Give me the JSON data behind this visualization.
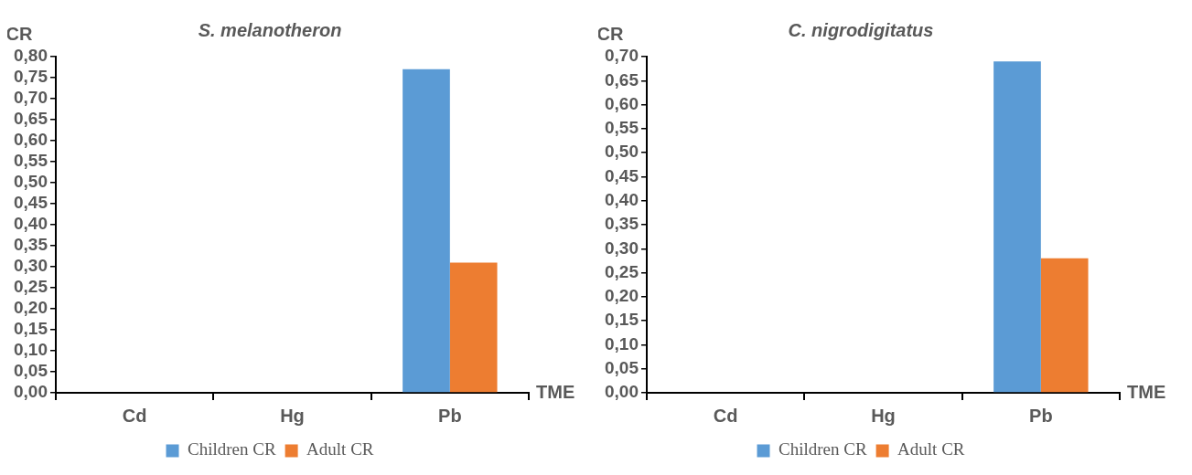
{
  "chart_data": [
    {
      "type": "bar",
      "title": "S. melanotheron",
      "ylabel": "CR",
      "xlabel": "TME",
      "categories": [
        "Cd",
        "Hg",
        "Pb"
      ],
      "series": [
        {
          "name": "Children CR",
          "color": "#5b9bd5",
          "values": [
            0,
            0,
            0.77
          ]
        },
        {
          "name": "Adult CR",
          "color": "#ed7d31",
          "values": [
            0,
            0,
            0.31
          ]
        }
      ],
      "ylim": [
        0,
        0.8
      ],
      "yticks": [
        {
          "value": 0,
          "label": "0,00"
        },
        {
          "value": 0.05,
          "label": "0,05"
        },
        {
          "value": 0.1,
          "label": "0,10"
        },
        {
          "value": 0.15,
          "label": "0,15"
        },
        {
          "value": 0.2,
          "label": "0,20"
        },
        {
          "value": 0.25,
          "label": "0,25"
        },
        {
          "value": 0.3,
          "label": "0,30"
        },
        {
          "value": 0.35,
          "label": "0,35"
        },
        {
          "value": 0.4,
          "label": "0,40"
        },
        {
          "value": 0.45,
          "label": "0,45"
        },
        {
          "value": 0.5,
          "label": "0,50"
        },
        {
          "value": 0.55,
          "label": "0,55"
        },
        {
          "value": 0.6,
          "label": "0,60"
        },
        {
          "value": 0.65,
          "label": "0,65"
        },
        {
          "value": 0.7,
          "label": "0,70"
        },
        {
          "value": 0.75,
          "label": "0,75"
        },
        {
          "value": 0.8,
          "label": "0,80"
        }
      ],
      "grid": false,
      "legend": "bottom"
    },
    {
      "type": "bar",
      "title": "C. nigrodigitatus",
      "ylabel": "CR",
      "xlabel": "TME",
      "categories": [
        "Cd",
        "Hg",
        "Pb"
      ],
      "series": [
        {
          "name": "Children CR",
          "color": "#5b9bd5",
          "values": [
            0,
            0,
            0.69
          ]
        },
        {
          "name": "Adult CR",
          "color": "#ed7d31",
          "values": [
            0,
            0,
            0.28
          ]
        }
      ],
      "ylim": [
        0,
        0.7
      ],
      "yticks": [
        {
          "value": 0,
          "label": "0,00"
        },
        {
          "value": 0.05,
          "label": "0,05"
        },
        {
          "value": 0.1,
          "label": "0,10"
        },
        {
          "value": 0.15,
          "label": "0,15"
        },
        {
          "value": 0.2,
          "label": "0,20"
        },
        {
          "value": 0.25,
          "label": "0,25"
        },
        {
          "value": 0.3,
          "label": "0,30"
        },
        {
          "value": 0.35,
          "label": "0,35"
        },
        {
          "value": 0.4,
          "label": "0,40"
        },
        {
          "value": 0.45,
          "label": "0,45"
        },
        {
          "value": 0.5,
          "label": "0,50"
        },
        {
          "value": 0.55,
          "label": "0,55"
        },
        {
          "value": 0.6,
          "label": "0,60"
        },
        {
          "value": 0.65,
          "label": "0,65"
        },
        {
          "value": 0.7,
          "label": "0,70"
        }
      ],
      "grid": false,
      "legend": "bottom"
    }
  ]
}
